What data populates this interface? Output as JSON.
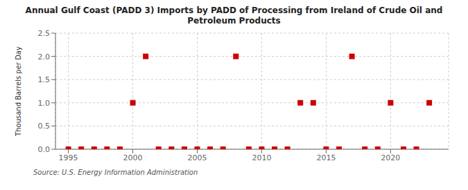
{
  "chart_data": {
    "type": "scatter",
    "title": "Annual Gulf Coast (PADD 3) Imports by PADD of Processing from Ireland of Crude Oil and\nPetroleum Products",
    "ylabel": "Thousand Barrels per Day",
    "annotation": "Source: U.S. Energy Information Administration",
    "x": [
      1995,
      1996,
      1997,
      1998,
      1999,
      2000,
      2001,
      2002,
      2003,
      2004,
      2005,
      2006,
      2007,
      2008,
      2009,
      2010,
      2011,
      2012,
      2013,
      2014,
      2015,
      2016,
      2017,
      2018,
      2019,
      2020,
      2021,
      2022,
      2023
    ],
    "values": [
      0,
      0,
      0,
      0,
      0,
      1.0,
      2.0,
      0,
      0,
      0,
      0,
      0,
      0,
      2.0,
      0,
      0,
      0,
      0,
      1.0,
      1.0,
      0,
      0,
      2.0,
      0,
      0,
      1.0,
      0,
      0,
      1.0
    ],
    "color": "#cc0000",
    "marker": "square",
    "xlim": [
      1994.0,
      2024.5
    ],
    "ylim": [
      0,
      2.5
    ],
    "xticks": [
      1995,
      2000,
      2005,
      2010,
      2015,
      2020
    ],
    "yticks": [
      {
        "value": 0.0,
        "label": "0.0"
      },
      0.5,
      {
        "value": 1.0,
        "label": "1.0"
      },
      1.5,
      {
        "value": 2.0,
        "label": "2.0"
      },
      2.5
    ],
    "grid": true
  }
}
